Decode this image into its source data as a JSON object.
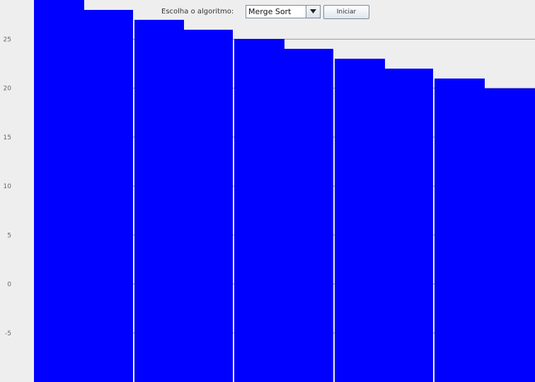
{
  "toolbar": {
    "algorithm_label": "Escolha o algoritmo:",
    "selected_algorithm": "Merge Sort",
    "start_button_label": "Iniciar"
  },
  "colors": {
    "bar": "#0000ff",
    "background": "#eeeeee",
    "gridline": "#999999"
  },
  "icons": {
    "dropdown": "chevron-down-icon"
  },
  "chart_data": {
    "type": "bar",
    "bar_color": "#0000ff",
    "values": [
      29,
      28,
      27,
      26,
      25,
      24,
      23,
      22,
      21,
      20
    ],
    "y_ticks": [
      -5,
      0,
      5,
      10,
      15,
      20,
      25
    ],
    "ylim": [
      -10,
      29
    ],
    "grid": true
  }
}
